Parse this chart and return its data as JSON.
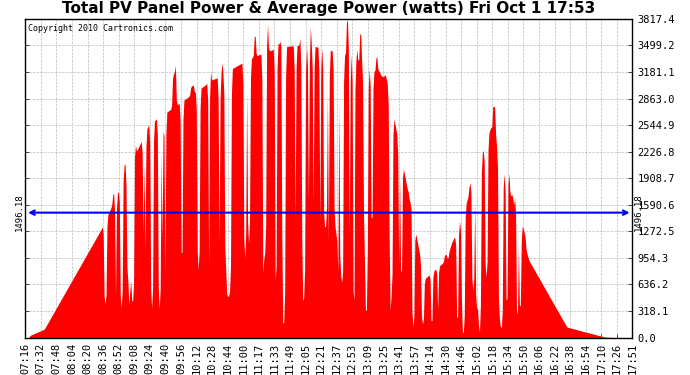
{
  "title": "Total PV Panel Power & Average Power (watts) Fri Oct 1 17:53",
  "copyright": "Copyright 2010 Cartronics.com",
  "avg_power": 1496.18,
  "ymax": 3817.4,
  "ymin": 0.0,
  "ytick_values": [
    0.0,
    318.1,
    636.2,
    954.3,
    1272.5,
    1590.6,
    1908.7,
    2226.8,
    2544.9,
    2863.0,
    3181.1,
    3499.2,
    3817.4
  ],
  "xtick_labels": [
    "07:16",
    "07:32",
    "07:48",
    "08:04",
    "08:20",
    "08:36",
    "08:52",
    "09:08",
    "09:24",
    "09:40",
    "09:56",
    "10:12",
    "10:28",
    "10:44",
    "11:00",
    "11:17",
    "11:33",
    "11:49",
    "12:05",
    "12:21",
    "12:37",
    "12:53",
    "13:09",
    "13:25",
    "13:41",
    "13:57",
    "14:14",
    "14:30",
    "14:46",
    "15:02",
    "15:18",
    "15:34",
    "15:50",
    "16:06",
    "16:22",
    "16:38",
    "16:54",
    "17:10",
    "17:26",
    "17:51"
  ],
  "area_color": "#FF0000",
  "avg_line_color": "#0000FF",
  "bg_color": "#FFFFFF",
  "plot_bg_color": "#FFFFFF",
  "grid_color": "#AAAAAA",
  "title_fontsize": 11,
  "tick_fontsize": 7.5
}
